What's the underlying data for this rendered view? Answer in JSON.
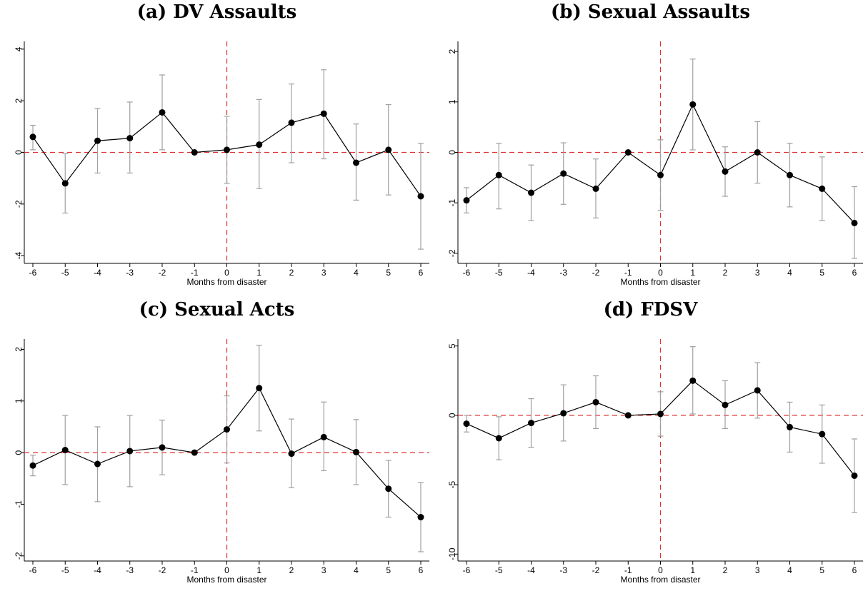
{
  "figure": {
    "xlabel": "Months from disaster"
  },
  "chart_data": [
    {
      "type": "line",
      "title": "(a) DV Assaults",
      "xlabel": "Months from disaster",
      "ylabel": "",
      "x": [
        -6,
        -5,
        -4,
        -3,
        -2,
        -1,
        0,
        1,
        2,
        3,
        4,
        5,
        6
      ],
      "y": [
        0.6,
        -1.2,
        0.45,
        0.55,
        1.55,
        0.0,
        0.1,
        0.3,
        1.15,
        1.5,
        -0.4,
        0.1,
        -1.7
      ],
      "ci_low": [
        0.1,
        -2.35,
        -0.8,
        -0.8,
        0.1,
        0.0,
        -1.2,
        -1.4,
        -0.4,
        -0.25,
        -1.85,
        -1.65,
        -3.75
      ],
      "ci_high": [
        1.05,
        -0.05,
        1.7,
        1.95,
        3.0,
        0.0,
        1.4,
        2.05,
        2.65,
        3.2,
        1.1,
        1.85,
        0.35
      ],
      "ylim": [
        -4.3,
        4.3
      ],
      "yticks": [
        -4,
        -2,
        0,
        2,
        4
      ],
      "xticks": [
        -6,
        -5,
        -4,
        -3,
        -2,
        -1,
        0,
        1,
        2,
        3,
        4,
        5,
        6
      ],
      "reference_lines": {
        "x": 0,
        "y": 0
      },
      "colors": {
        "line": "#000000",
        "ci": "#a0a0a0",
        "ref": "#e03030"
      }
    },
    {
      "type": "line",
      "title": "(b) Sexual Assaults",
      "xlabel": "Months from disaster",
      "ylabel": "",
      "x": [
        -6,
        -5,
        -4,
        -3,
        -2,
        -1,
        0,
        1,
        2,
        3,
        4,
        5,
        6
      ],
      "y": [
        -0.95,
        -0.45,
        -0.8,
        -0.42,
        -0.72,
        0.0,
        -0.45,
        0.95,
        -0.38,
        0.0,
        -0.45,
        -0.72,
        -1.4
      ],
      "ci_low": [
        -1.2,
        -1.12,
        -1.35,
        -1.03,
        -1.3,
        0.0,
        -1.15,
        0.05,
        -0.87,
        -0.61,
        -1.08,
        -1.35,
        -2.1
      ],
      "ci_high": [
        -0.7,
        0.18,
        -0.25,
        0.19,
        -0.13,
        0.0,
        0.25,
        1.85,
        0.11,
        0.61,
        0.18,
        -0.09,
        -0.68
      ],
      "ylim": [
        -2.2,
        2.2
      ],
      "yticks": [
        -2,
        -1,
        0,
        1,
        2
      ],
      "xticks": [
        -6,
        -5,
        -4,
        -3,
        -2,
        -1,
        0,
        1,
        2,
        3,
        4,
        5,
        6
      ],
      "reference_lines": {
        "x": 0,
        "y": 0
      },
      "colors": {
        "line": "#000000",
        "ci": "#a0a0a0",
        "ref": "#e03030"
      }
    },
    {
      "type": "line",
      "title": "(c) Sexual Acts",
      "xlabel": "Months from disaster",
      "ylabel": "",
      "x": [
        -6,
        -5,
        -4,
        -3,
        -2,
        -1,
        0,
        1,
        2,
        3,
        4,
        5,
        6
      ],
      "y": [
        -0.25,
        0.05,
        -0.22,
        0.03,
        0.1,
        0.0,
        0.45,
        1.25,
        -0.02,
        0.3,
        0.01,
        -0.7,
        -1.25
      ],
      "ci_low": [
        -0.45,
        -0.62,
        -0.95,
        -0.66,
        -0.43,
        0.0,
        -0.2,
        0.42,
        -0.68,
        -0.35,
        -0.62,
        -1.25,
        -1.92
      ],
      "ci_high": [
        -0.05,
        0.72,
        0.5,
        0.72,
        0.63,
        0.0,
        1.1,
        2.08,
        0.65,
        0.98,
        0.64,
        -0.15,
        -0.58
      ],
      "ylim": [
        -2.1,
        2.2
      ],
      "yticks": [
        -2,
        -1,
        0,
        1,
        2
      ],
      "xticks": [
        -6,
        -5,
        -4,
        -3,
        -2,
        -1,
        0,
        1,
        2,
        3,
        4,
        5,
        6
      ],
      "reference_lines": {
        "x": 0,
        "y": 0
      },
      "colors": {
        "line": "#000000",
        "ci": "#a0a0a0",
        "ref": "#e03030"
      }
    },
    {
      "type": "line",
      "title": "(d) FDSV",
      "xlabel": "Months from disaster",
      "ylabel": "",
      "x": [
        -6,
        -5,
        -4,
        -3,
        -2,
        -1,
        0,
        1,
        2,
        3,
        4,
        5,
        6
      ],
      "y": [
        -0.6,
        -1.65,
        -0.55,
        0.15,
        0.95,
        0.0,
        0.1,
        2.5,
        0.75,
        1.8,
        -0.85,
        -1.35,
        -4.35
      ],
      "ci_low": [
        -1.2,
        -3.2,
        -2.3,
        -1.85,
        -0.95,
        0.0,
        -1.5,
        0.1,
        -0.95,
        -0.2,
        -2.65,
        -3.45,
        -7.0
      ],
      "ci_high": [
        0.0,
        -0.1,
        1.2,
        2.2,
        2.85,
        0.0,
        1.7,
        4.95,
        2.5,
        3.8,
        0.95,
        0.75,
        -1.7
      ],
      "ylim": [
        -10.5,
        5.5
      ],
      "yticks": [
        -10,
        -5,
        0,
        5
      ],
      "xticks": [
        -6,
        -5,
        -4,
        -3,
        -2,
        -1,
        0,
        1,
        2,
        3,
        4,
        5,
        6
      ],
      "reference_lines": {
        "x": 0,
        "y": 0
      },
      "colors": {
        "line": "#000000",
        "ci": "#a0a0a0",
        "ref": "#e03030"
      }
    }
  ]
}
